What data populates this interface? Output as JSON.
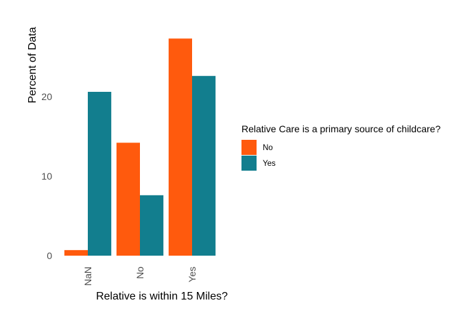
{
  "chart_data": {
    "type": "bar",
    "xlabel": "Relative is within 15 Miles?",
    "ylabel": "Percent of Data",
    "categories": [
      "NaN",
      "No",
      "Yes"
    ],
    "series": [
      {
        "name": "No",
        "values": [
          0.7,
          14.2,
          27.3
        ],
        "color": "#FF5A0D"
      },
      {
        "name": "Yes",
        "values": [
          20.6,
          7.6,
          22.6
        ],
        "color": "#127E8E"
      }
    ],
    "yticks": [
      0,
      10,
      20
    ],
    "ylim": [
      0,
      28.7
    ],
    "grid": false,
    "legend": {
      "title": "Relative Care is a primary source of childcare?",
      "placement": "right"
    }
  }
}
